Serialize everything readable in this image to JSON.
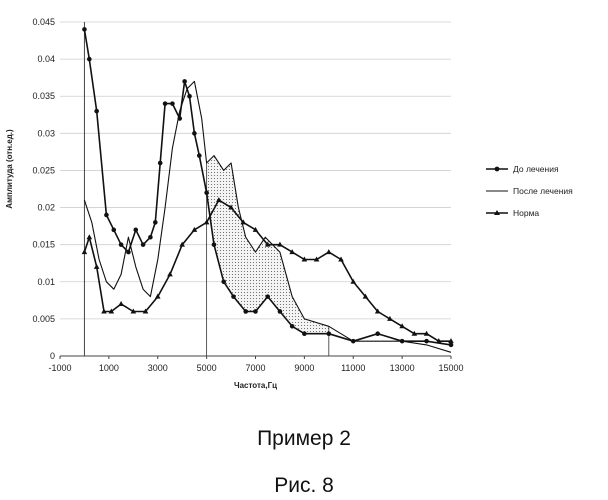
{
  "chart_data": {
    "type": "line",
    "title": "",
    "xlabel": "Частота,Гц",
    "ylabel": "Амплитуда (отн.ед.)",
    "xlim": [
      -1000,
      15000
    ],
    "ylim": [
      0,
      0.045
    ],
    "xticks": [
      "-1000",
      "1000",
      "3000",
      "5000",
      "7000",
      "9000",
      "11000",
      "13000",
      "15000"
    ],
    "yticks": [
      "0",
      "0.005",
      "0.01",
      "0.015",
      "0.02",
      "0.025",
      "0.03",
      "0.035",
      "0.04",
      "0.045"
    ],
    "grid": "horizontal",
    "legend_position": "right",
    "shaded_region": {
      "x_from": 5000,
      "x_to": 10000,
      "between": [
        "До лечения",
        "После лечения"
      ]
    },
    "series": [
      {
        "name": "До лечения",
        "marker": "circle",
        "x": [
          0,
          200,
          500,
          900,
          1200,
          1500,
          1800,
          2100,
          2400,
          2700,
          2900,
          3100,
          3300,
          3600,
          3900,
          4100,
          4300,
          4500,
          4700,
          5000,
          5300,
          5700,
          6100,
          6600,
          7000,
          7500,
          8000,
          8500,
          9000,
          10000,
          11000,
          12000,
          13000,
          14000,
          15000
        ],
        "y": [
          0.044,
          0.04,
          0.033,
          0.019,
          0.017,
          0.015,
          0.014,
          0.017,
          0.015,
          0.016,
          0.018,
          0.026,
          0.034,
          0.034,
          0.032,
          0.037,
          0.035,
          0.03,
          0.027,
          0.022,
          0.015,
          0.01,
          0.008,
          0.006,
          0.006,
          0.008,
          0.006,
          0.004,
          0.003,
          0.003,
          0.002,
          0.003,
          0.002,
          0.002,
          0.0015
        ]
      },
      {
        "name": "После лечения",
        "marker": "none",
        "x": [
          0,
          300,
          600,
          900,
          1200,
          1500,
          1800,
          2100,
          2400,
          2700,
          3000,
          3300,
          3600,
          3900,
          4200,
          4500,
          4800,
          5000,
          5300,
          5700,
          6000,
          6300,
          6600,
          7000,
          7400,
          8000,
          8500,
          9000,
          10000,
          11000,
          12000,
          13000,
          14000,
          15000
        ],
        "y": [
          0.021,
          0.018,
          0.013,
          0.01,
          0.009,
          0.011,
          0.016,
          0.012,
          0.009,
          0.008,
          0.013,
          0.02,
          0.028,
          0.033,
          0.036,
          0.037,
          0.032,
          0.026,
          0.027,
          0.025,
          0.026,
          0.02,
          0.016,
          0.014,
          0.016,
          0.014,
          0.008,
          0.005,
          0.004,
          0.002,
          0.002,
          0.002,
          0.0015,
          0.0005
        ]
      },
      {
        "name": "Норма",
        "marker": "triangle",
        "x": [
          0,
          200,
          500,
          800,
          1100,
          1500,
          2000,
          2500,
          3000,
          3500,
          4000,
          4500,
          5000,
          5500,
          6000,
          6500,
          7000,
          7500,
          8000,
          8500,
          9000,
          9500,
          10000,
          10500,
          11000,
          11500,
          12000,
          12500,
          13000,
          13500,
          14000,
          14500,
          15000
        ],
        "y": [
          0.014,
          0.016,
          0.012,
          0.006,
          0.006,
          0.007,
          0.006,
          0.006,
          0.008,
          0.011,
          0.015,
          0.017,
          0.018,
          0.021,
          0.02,
          0.018,
          0.017,
          0.015,
          0.015,
          0.014,
          0.013,
          0.013,
          0.014,
          0.013,
          0.01,
          0.008,
          0.006,
          0.005,
          0.004,
          0.003,
          0.003,
          0.002,
          0.002
        ]
      }
    ]
  },
  "captions": {
    "example": "Пример 2",
    "figure": "Рис. 8"
  }
}
